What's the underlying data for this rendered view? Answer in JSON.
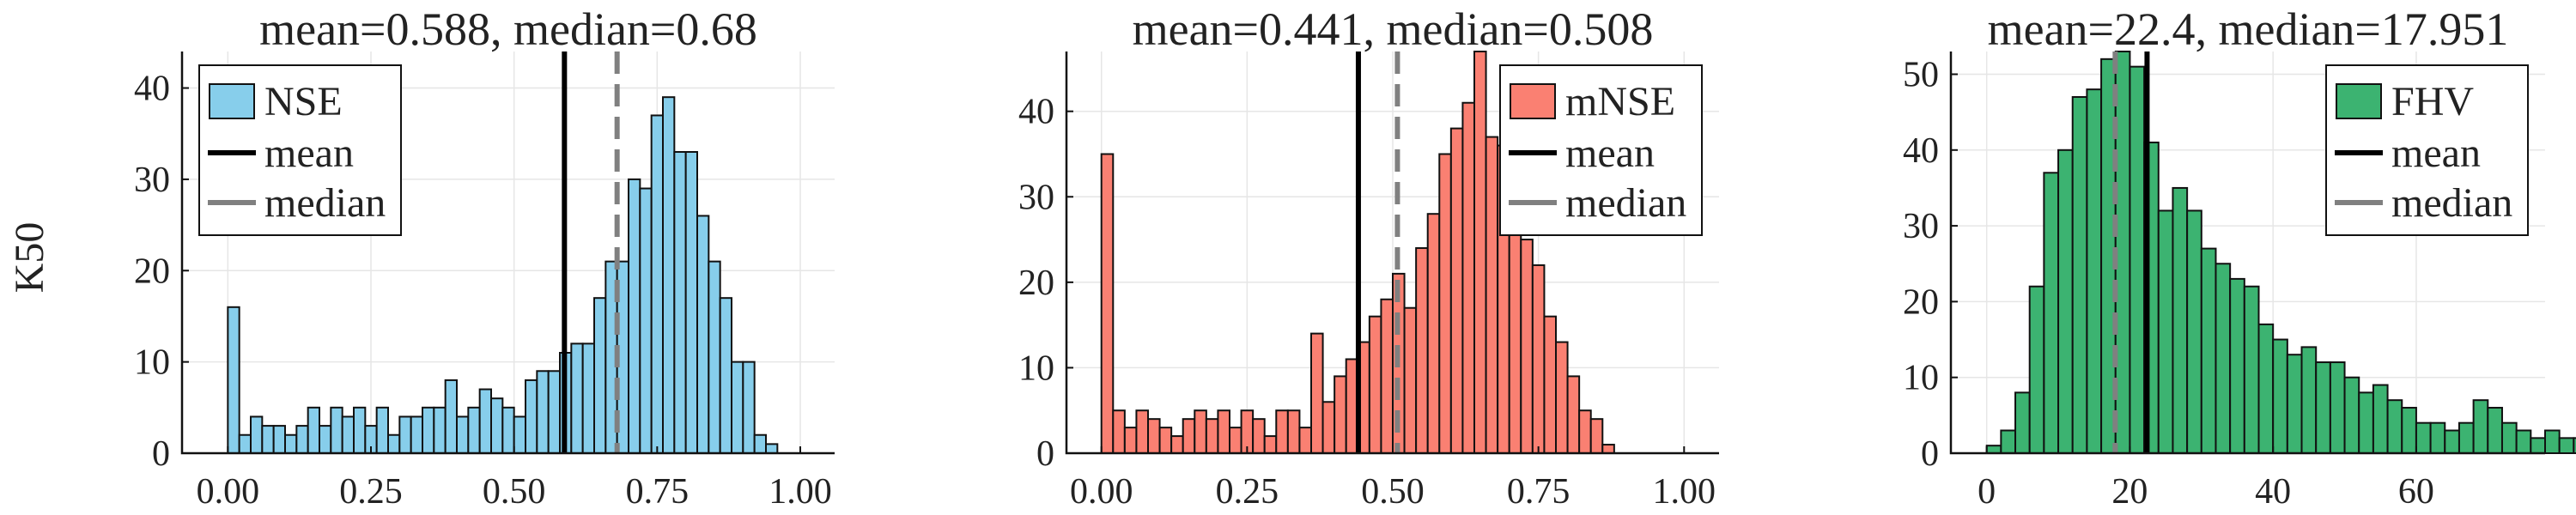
{
  "ylabel": "K50",
  "chart_data": [
    {
      "type": "histogram",
      "title": "mean=0.588, median=0.68",
      "color": "#87CEEB",
      "bin_start": 0.0,
      "bin_width": 0.02,
      "values": [
        16,
        2,
        4,
        3,
        3,
        2,
        3,
        5,
        3,
        5,
        4,
        5,
        3,
        5,
        2,
        4,
        4,
        5,
        5,
        8,
        4,
        5,
        7,
        6,
        5,
        4,
        8,
        9,
        9,
        11,
        12,
        12,
        17,
        21,
        21,
        30,
        29,
        37,
        39,
        33,
        33,
        26,
        21,
        17,
        10,
        10,
        2,
        1
      ],
      "xlim": [
        -0.08,
        1.06
      ],
      "ylim": [
        0,
        44
      ],
      "xticks": [
        0,
        0.25,
        0.5,
        0.75,
        1.0
      ],
      "xtick_labels": [
        "0.00",
        "0.25",
        "0.50",
        "0.75",
        "1.00"
      ],
      "yticks": [
        0,
        10,
        20,
        30,
        40
      ],
      "ytick_labels": [
        "0",
        "10",
        "20",
        "30",
        "40"
      ],
      "mean": 0.588,
      "median": 0.68,
      "legend": {
        "position": "top-left",
        "entries": [
          "NSE",
          "mean",
          "median"
        ]
      }
    },
    {
      "type": "histogram",
      "title": "mean=0.441, median=0.508",
      "color": "#FA8072",
      "bin_start": 0.0,
      "bin_width": 0.02,
      "values": [
        35,
        5,
        3,
        5,
        4,
        3,
        2,
        4,
        5,
        4,
        5,
        3,
        5,
        4,
        2,
        5,
        5,
        3,
        14,
        6,
        9,
        11,
        13,
        16,
        18,
        21,
        17,
        24,
        28,
        35,
        38,
        41,
        47,
        37,
        36,
        32,
        25,
        22,
        16,
        13,
        9,
        5,
        4,
        1
      ],
      "xlim": [
        -0.06,
        1.06
      ],
      "ylim": [
        0,
        47
      ],
      "xticks": [
        0,
        0.25,
        0.5,
        0.75,
        1.0
      ],
      "xtick_labels": [
        "0.00",
        "0.25",
        "0.50",
        "0.75",
        "1.00"
      ],
      "yticks": [
        0,
        10,
        20,
        30,
        40
      ],
      "ytick_labels": [
        "0",
        "10",
        "20",
        "30",
        "40"
      ],
      "mean": 0.441,
      "median": 0.508,
      "legend": {
        "position": "top-right",
        "entries": [
          "mNSE",
          "mean",
          "median"
        ]
      }
    },
    {
      "type": "histogram",
      "title": "mean=22.4, median=17.951",
      "color": "#3CB371",
      "bin_start": 0,
      "bin_width": 2,
      "values": [
        1,
        3,
        8,
        22,
        37,
        40,
        47,
        48,
        52,
        53,
        51,
        41,
        32,
        35,
        32,
        27,
        25,
        23,
        22,
        17,
        15,
        13,
        14,
        12,
        12,
        10,
        8,
        9,
        7,
        6,
        4,
        4,
        3,
        4,
        7,
        6,
        4,
        3,
        2,
        3,
        2,
        2,
        3,
        2,
        2,
        2,
        4,
        3,
        2,
        2,
        1,
        3,
        1
      ],
      "xlim": [
        -5,
        78
      ],
      "ylim": [
        0,
        53
      ],
      "xticks": [
        0,
        20,
        40,
        60
      ],
      "xtick_labels": [
        "0",
        "20",
        "40",
        "60"
      ],
      "yticks": [
        0,
        10,
        20,
        30,
        40,
        50
      ],
      "ytick_labels": [
        "0",
        "10",
        "20",
        "30",
        "40",
        "50"
      ],
      "mean": 22.4,
      "median": 17.951,
      "legend": {
        "position": "top-right",
        "entries": [
          "FHV",
          "mean",
          "median"
        ]
      }
    }
  ]
}
